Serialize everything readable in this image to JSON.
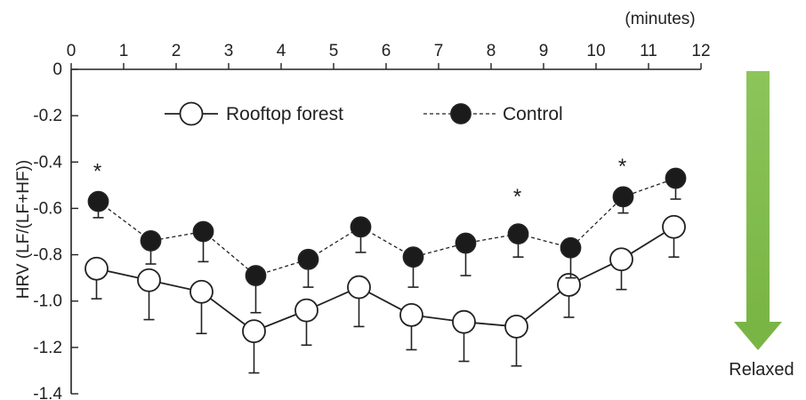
{
  "chart_data": {
    "type": "line",
    "title": "",
    "x_unit_label": "(minutes)",
    "ylabel": "HRV (LF/(LF+HF))",
    "xlim": [
      0,
      12
    ],
    "ylim": [
      -1.4,
      0
    ],
    "x_ticks": [
      "0",
      "1",
      "2",
      "3",
      "4",
      "5",
      "6",
      "7",
      "8",
      "9",
      "10",
      "11",
      "12"
    ],
    "y_ticks": [
      "0",
      "-0.2",
      "-0.4",
      "-0.6",
      "-0.8",
      "-1.0",
      "-1.2",
      "-1.4"
    ],
    "x": [
      0.5,
      1.5,
      2.5,
      3.5,
      4.5,
      5.5,
      6.5,
      7.5,
      8.5,
      9.5,
      10.5,
      11.5
    ],
    "series": [
      {
        "name": "Rooftop forest",
        "marker": "open-circle",
        "line": "solid",
        "values": [
          -0.86,
          -0.91,
          -0.96,
          -1.13,
          -1.04,
          -0.94,
          -1.06,
          -1.09,
          -1.11,
          -0.93,
          -0.82,
          -0.68
        ],
        "error": [
          0.13,
          0.17,
          0.18,
          0.18,
          0.15,
          0.17,
          0.15,
          0.17,
          0.17,
          0.14,
          0.13,
          0.13
        ]
      },
      {
        "name": "Control",
        "marker": "filled-circle",
        "line": "dashed",
        "values": [
          -0.57,
          -0.74,
          -0.7,
          -0.89,
          -0.82,
          -0.68,
          -0.81,
          -0.75,
          -0.71,
          -0.77,
          -0.55,
          -0.47
        ],
        "error": [
          0.07,
          0.1,
          0.13,
          0.16,
          0.12,
          0.11,
          0.13,
          0.14,
          0.1,
          0.13,
          0.07,
          0.09
        ]
      }
    ],
    "significance": [
      {
        "x": 0.5,
        "label": "*"
      },
      {
        "x": 8.5,
        "label": "*"
      },
      {
        "x": 10.5,
        "label": "*"
      }
    ],
    "legend_position": "top"
  },
  "annotation": {
    "arrow_label": "Relaxed",
    "arrow_color": "#7ab648"
  }
}
